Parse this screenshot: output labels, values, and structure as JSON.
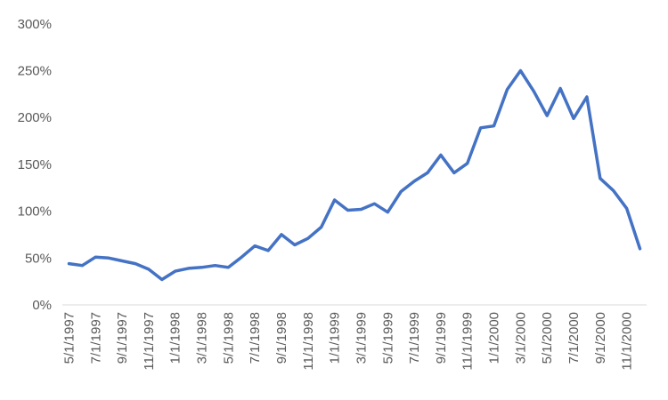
{
  "chart_data": {
    "type": "line",
    "series_name": "",
    "x": [
      "5/1/1997",
      "6/1/1997",
      "7/1/1997",
      "8/1/1997",
      "9/1/1997",
      "10/1/1997",
      "11/1/1997",
      "12/1/1997",
      "1/1/1998",
      "2/1/1998",
      "3/1/1998",
      "4/1/1998",
      "5/1/1998",
      "6/1/1998",
      "7/1/1998",
      "8/1/1998",
      "9/1/1998",
      "10/1/1998",
      "11/1/1998",
      "12/1/1998",
      "1/1/1999",
      "2/1/1999",
      "3/1/1999",
      "4/1/1999",
      "5/1/1999",
      "6/1/1999",
      "7/1/1999",
      "8/1/1999",
      "9/1/1999",
      "10/1/1999",
      "11/1/1999",
      "12/1/1999",
      "1/1/2000",
      "2/1/2000",
      "3/1/2000",
      "4/1/2000",
      "5/1/2000",
      "6/1/2000",
      "7/1/2000",
      "8/1/2000",
      "9/1/2000",
      "10/1/2000",
      "11/1/2000",
      "12/1/2000"
    ],
    "values": [
      44,
      42,
      51,
      50,
      47,
      44,
      38,
      27,
      36,
      39,
      40,
      42,
      40,
      51,
      63,
      58,
      75,
      64,
      71,
      83,
      112,
      101,
      102,
      108,
      99,
      121,
      132,
      141,
      160,
      141,
      151,
      189,
      191,
      230,
      250,
      228,
      202,
      231,
      199,
      222,
      135,
      122,
      103,
      60
    ],
    "y_unit": "%",
    "ylim": [
      0,
      300
    ],
    "y_tick_step": 50,
    "y_tick_labels": [
      "0%",
      "50%",
      "100%",
      "150%",
      "200%",
      "250%",
      "300%"
    ],
    "x_tick_every": 2,
    "x_tick_labels": [
      "5/1/1997",
      "7/1/1997",
      "9/1/1997",
      "11/1/1997",
      "1/1/1998",
      "3/1/1998",
      "5/1/1998",
      "7/1/1998",
      "9/1/1998",
      "11/1/1998",
      "1/1/1999",
      "3/1/1999",
      "5/1/1999",
      "7/1/1999",
      "9/1/1999",
      "11/1/1999",
      "1/1/2000",
      "3/1/2000",
      "5/1/2000",
      "7/1/2000",
      "9/1/2000",
      "11/1/2000"
    ],
    "grid": "off",
    "legend": "none",
    "line_color": "#4472C4",
    "axis_color": "#D9D9D9",
    "label_color": "#595959"
  }
}
